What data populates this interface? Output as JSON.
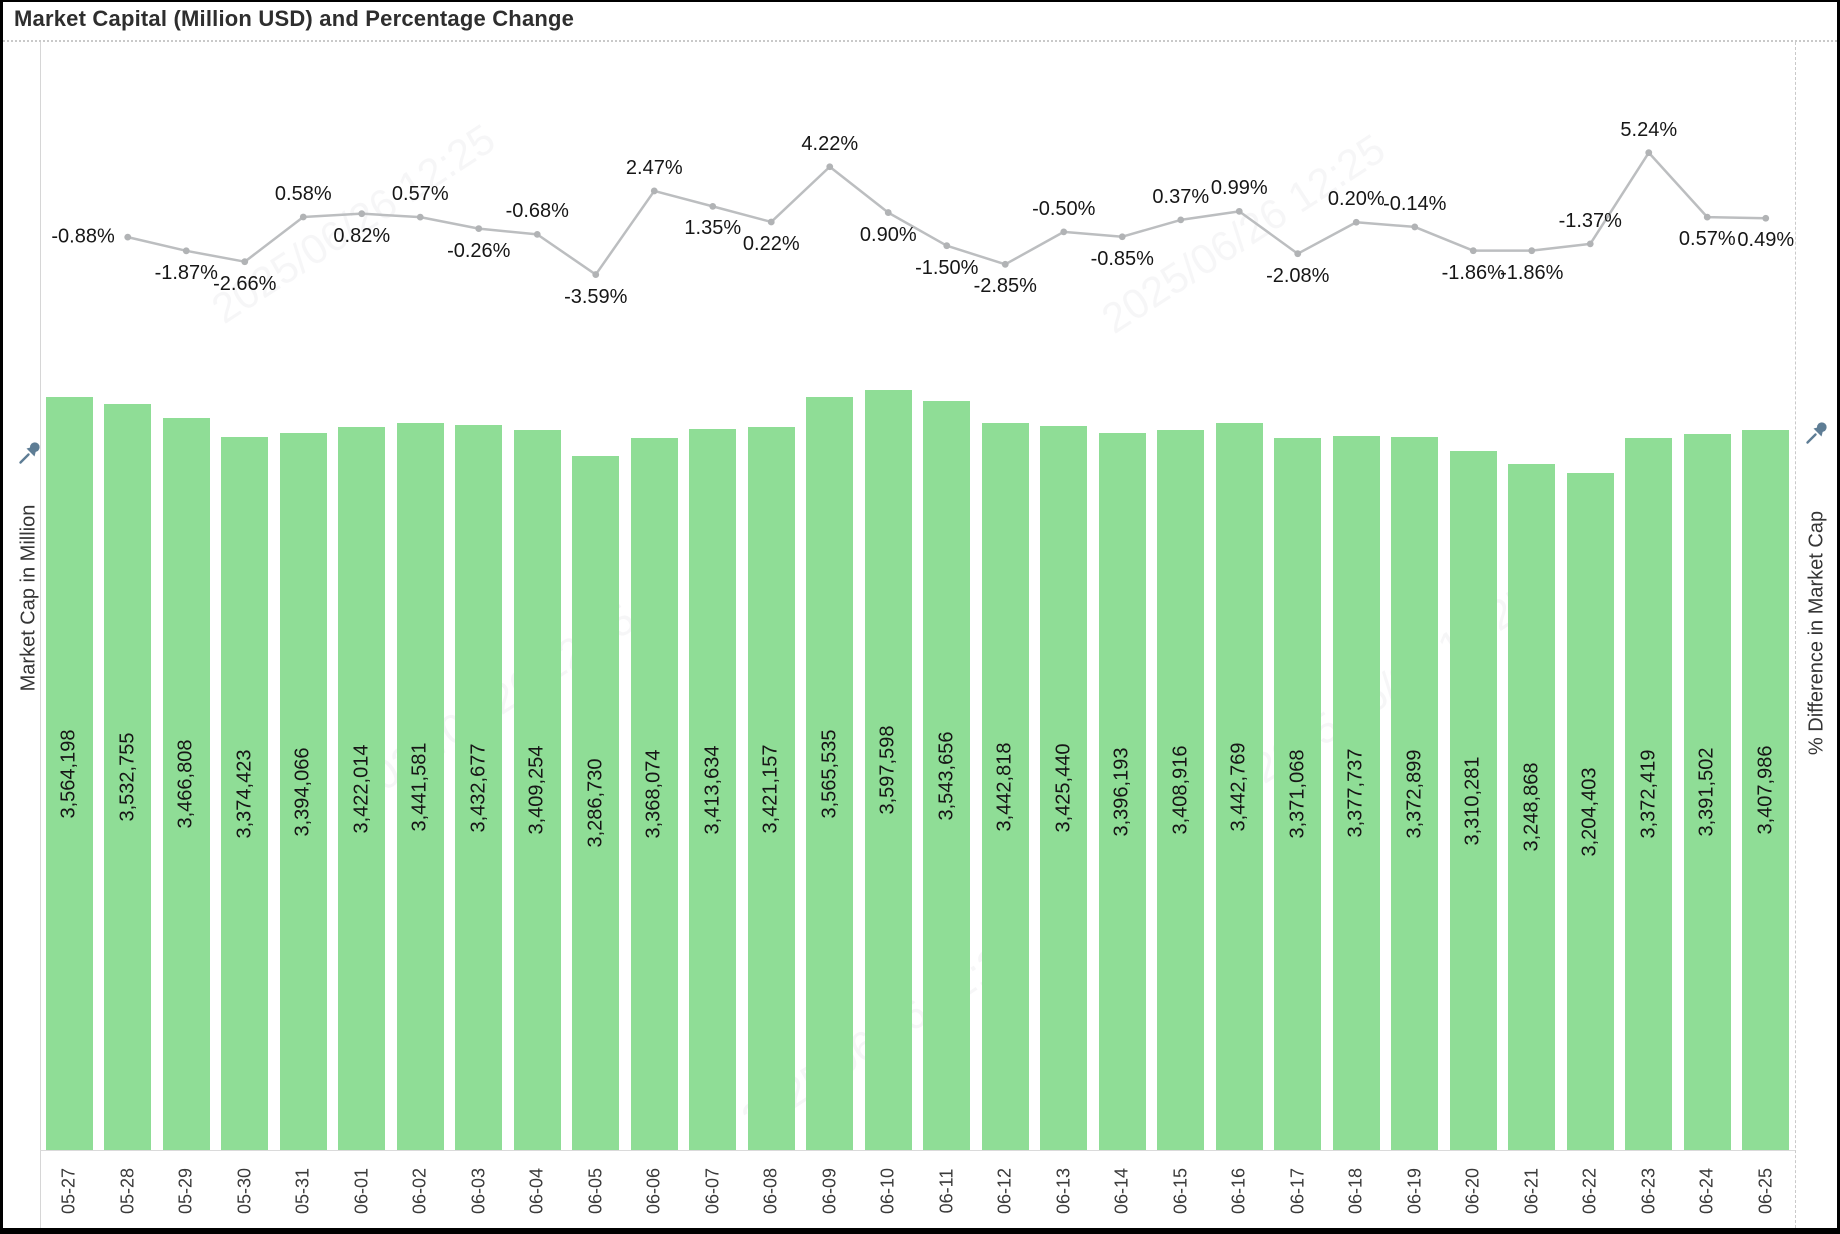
{
  "title": "Market Capital (Million USD) and Percentage Change",
  "axes": {
    "left_label": "Market Cap in Million",
    "right_label": "% Difference in Market Cap"
  },
  "watermark": "2025/06/26 12:25",
  "colors": {
    "bar": "#8FDD96",
    "line": "#BCBEC0",
    "marker": "#B1B3B5",
    "data_label": "#161616",
    "title": "#2E2E2E",
    "axis_label": "#353535",
    "tick_label": "#3A3A3A",
    "pin": "#5E7D95",
    "rule": "#C9C9C9",
    "frame": "#000000"
  },
  "chart_data": {
    "type": "combo",
    "title": "Market Capital (Million USD) and Percentage Change",
    "categories": [
      "05-27",
      "05-28",
      "05-29",
      "05-30",
      "05-31",
      "06-01",
      "06-02",
      "06-03",
      "06-04",
      "06-05",
      "06-06",
      "06-07",
      "06-08",
      "06-09",
      "06-10",
      "06-11",
      "06-12",
      "06-13",
      "06-14",
      "06-15",
      "06-16",
      "06-17",
      "06-18",
      "06-19",
      "06-20",
      "06-21",
      "06-22",
      "06-23",
      "06-24",
      "06-25"
    ],
    "series": [
      {
        "name": "Market Cap in Million",
        "type": "bar",
        "values": [
          3564198,
          3532755,
          3466808,
          3374423,
          3394066,
          3422014,
          3441581,
          3432677,
          3409254,
          3286730,
          3368074,
          3413634,
          3421157,
          3565535,
          3597598,
          3543656,
          3442818,
          3425440,
          3396193,
          3408916,
          3442769,
          3371068,
          3377737,
          3372899,
          3310281,
          3248868,
          3204403,
          3372419,
          3391502,
          3407986
        ],
        "labels": [
          "3,564,198",
          "3,532,755",
          "3,466,808",
          "3,374,423",
          "3,394,066",
          "3,422,014",
          "3,441,581",
          "3,432,677",
          "3,409,254",
          "3,286,730",
          "3,368,074",
          "3,413,634",
          "3,421,157",
          "3,565,535",
          "3,597,598",
          "3,543,656",
          "3,442,818",
          "3,425,440",
          "3,396,193",
          "3,408,916",
          "3,442,769",
          "3,371,068",
          "3,377,737",
          "3,372,899",
          "3,310,281",
          "3,248,868",
          "3,204,403",
          "3,372,419",
          "3,391,502",
          "3,407,986"
        ]
      },
      {
        "name": "% Difference in Market Cap",
        "type": "line",
        "start_category": "05-28",
        "values": [
          -0.88,
          -1.87,
          -2.66,
          0.58,
          0.82,
          0.57,
          -0.26,
          -0.68,
          -3.59,
          2.47,
          1.35,
          0.22,
          4.22,
          0.9,
          -1.5,
          -2.85,
          -0.5,
          -0.85,
          0.37,
          0.99,
          -2.08,
          0.2,
          -0.14,
          -1.86,
          -1.86,
          -1.37,
          5.24,
          0.57,
          0.49
        ],
        "labels": [
          "-0.88%",
          "-1.87%",
          "-2.66%",
          "0.58%",
          "0.82%",
          "0.57%",
          "-0.26%",
          "-0.68%",
          "-3.59%",
          "2.47%",
          "1.35%",
          "0.22%",
          "4.22%",
          "0.90%",
          "-1.50%",
          "-2.85%",
          "-0.50%",
          "-0.85%",
          "0.37%",
          "0.99%",
          "-2.08%",
          "0.20%",
          "-0.14%",
          "-1.86%",
          "-1.86%",
          "-1.37%",
          "5.24%",
          "0.57%",
          "0.49%"
        ],
        "label_placement": [
          "left",
          "below",
          "below",
          "above",
          "below",
          "above",
          "below",
          "above",
          "below",
          "above",
          "below",
          "below",
          "above",
          "below",
          "below",
          "below",
          "above",
          "below",
          "above",
          "above",
          "below",
          "above",
          "above",
          "below",
          "below",
          "above",
          "above",
          "below",
          "below"
        ]
      }
    ],
    "bar_axis": {
      "min": 0,
      "ticks_visible": false
    },
    "line_axis": {
      "ticks_visible": false
    },
    "grid": "off",
    "legend": "none"
  }
}
